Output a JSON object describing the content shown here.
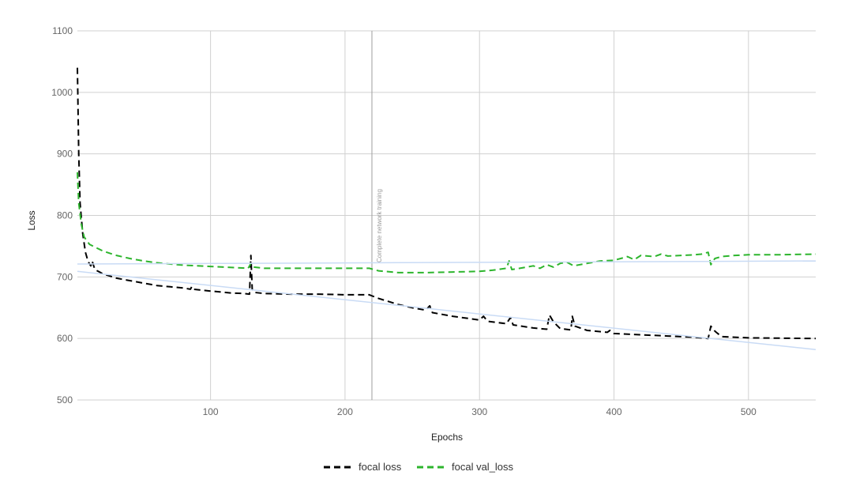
{
  "chart_data": {
    "type": "line",
    "xlabel": "Epochs",
    "ylabel": "Loss",
    "xlim": [
      1,
      550
    ],
    "ylim": [
      500,
      1100
    ],
    "x_ticks": [
      100,
      200,
      300,
      400,
      500
    ],
    "y_ticks": [
      500,
      600,
      700,
      800,
      900,
      1000,
      1100
    ],
    "grid": true,
    "legend_position": "bottom",
    "annotation": {
      "x": 220,
      "text": "Complete network training"
    },
    "series": [
      {
        "name": "focal loss",
        "color": "#000000",
        "dashed": true,
        "points": [
          [
            1,
            1040
          ],
          [
            2,
            900
          ],
          [
            3,
            820
          ],
          [
            5,
            770
          ],
          [
            7,
            740
          ],
          [
            9,
            725
          ],
          [
            11,
            718
          ],
          [
            12,
            726
          ],
          [
            14,
            712
          ],
          [
            20,
            705
          ],
          [
            30,
            698
          ],
          [
            40,
            694
          ],
          [
            50,
            690
          ],
          [
            60,
            686
          ],
          [
            70,
            684
          ],
          [
            80,
            682
          ],
          [
            85,
            680
          ],
          [
            86,
            684
          ],
          [
            87,
            680
          ],
          [
            100,
            677
          ],
          [
            110,
            675
          ],
          [
            115,
            674
          ],
          [
            125,
            673
          ],
          [
            129,
            672
          ],
          [
            130,
            735
          ],
          [
            131,
            680
          ],
          [
            132,
            675
          ],
          [
            140,
            673
          ],
          [
            160,
            672
          ],
          [
            180,
            672
          ],
          [
            200,
            671
          ],
          [
            218,
            671
          ],
          [
            225,
            665
          ],
          [
            240,
            655
          ],
          [
            250,
            650
          ],
          [
            260,
            646
          ],
          [
            263,
            653
          ],
          [
            265,
            642
          ],
          [
            280,
            636
          ],
          [
            300,
            630
          ],
          [
            303,
            636
          ],
          [
            306,
            628
          ],
          [
            320,
            624
          ],
          [
            323,
            634
          ],
          [
            325,
            622
          ],
          [
            340,
            617
          ],
          [
            350,
            615
          ],
          [
            352,
            638
          ],
          [
            355,
            627
          ],
          [
            360,
            616
          ],
          [
            368,
            614
          ],
          [
            369,
            636
          ],
          [
            371,
            620
          ],
          [
            380,
            613
          ],
          [
            395,
            610
          ],
          [
            397,
            613
          ],
          [
            400,
            608
          ],
          [
            420,
            606
          ],
          [
            440,
            604
          ],
          [
            460,
            602
          ],
          [
            470,
            600
          ],
          [
            472,
            620
          ],
          [
            474,
            614
          ],
          [
            476,
            610
          ],
          [
            480,
            603
          ],
          [
            500,
            601
          ],
          [
            550,
            600
          ]
        ]
      },
      {
        "name": "focal val_loss",
        "color": "#2db52d",
        "dashed": true,
        "points": [
          [
            1,
            870
          ],
          [
            2,
            820
          ],
          [
            4,
            785
          ],
          [
            6,
            765
          ],
          [
            10,
            753
          ],
          [
            20,
            742
          ],
          [
            30,
            735
          ],
          [
            40,
            730
          ],
          [
            50,
            726
          ],
          [
            60,
            723
          ],
          [
            70,
            721
          ],
          [
            80,
            719
          ],
          [
            90,
            718
          ],
          [
            100,
            717
          ],
          [
            110,
            716
          ],
          [
            120,
            715
          ],
          [
            128,
            714
          ],
          [
            130,
            722
          ],
          [
            132,
            716
          ],
          [
            140,
            714
          ],
          [
            160,
            714
          ],
          [
            180,
            714
          ],
          [
            200,
            714
          ],
          [
            218,
            714
          ],
          [
            225,
            710
          ],
          [
            240,
            707
          ],
          [
            260,
            707
          ],
          [
            280,
            708
          ],
          [
            300,
            709
          ],
          [
            310,
            711
          ],
          [
            320,
            714
          ],
          [
            322,
            726
          ],
          [
            324,
            712
          ],
          [
            330,
            714
          ],
          [
            340,
            718
          ],
          [
            345,
            714
          ],
          [
            350,
            720
          ],
          [
            355,
            716
          ],
          [
            360,
            722
          ],
          [
            365,
            724
          ],
          [
            370,
            718
          ],
          [
            380,
            722
          ],
          [
            390,
            726
          ],
          [
            400,
            727
          ],
          [
            405,
            730
          ],
          [
            410,
            733
          ],
          [
            415,
            728
          ],
          [
            420,
            735
          ],
          [
            425,
            734
          ],
          [
            430,
            733
          ],
          [
            435,
            737
          ],
          [
            440,
            734
          ],
          [
            450,
            735
          ],
          [
            460,
            736
          ],
          [
            465,
            737
          ],
          [
            470,
            740
          ],
          [
            472,
            720
          ],
          [
            475,
            730
          ],
          [
            480,
            733
          ],
          [
            490,
            735
          ],
          [
            500,
            736
          ],
          [
            520,
            736
          ],
          [
            550,
            737
          ]
        ]
      },
      {
        "color": "#c9dbf5",
        "dashed": false,
        "points": [
          [
            1,
            709
          ],
          [
            550,
            582
          ]
        ]
      },
      {
        "color": "#c9dbf5",
        "dashed": false,
        "points": [
          [
            1,
            721
          ],
          [
            550,
            726
          ]
        ]
      }
    ]
  }
}
